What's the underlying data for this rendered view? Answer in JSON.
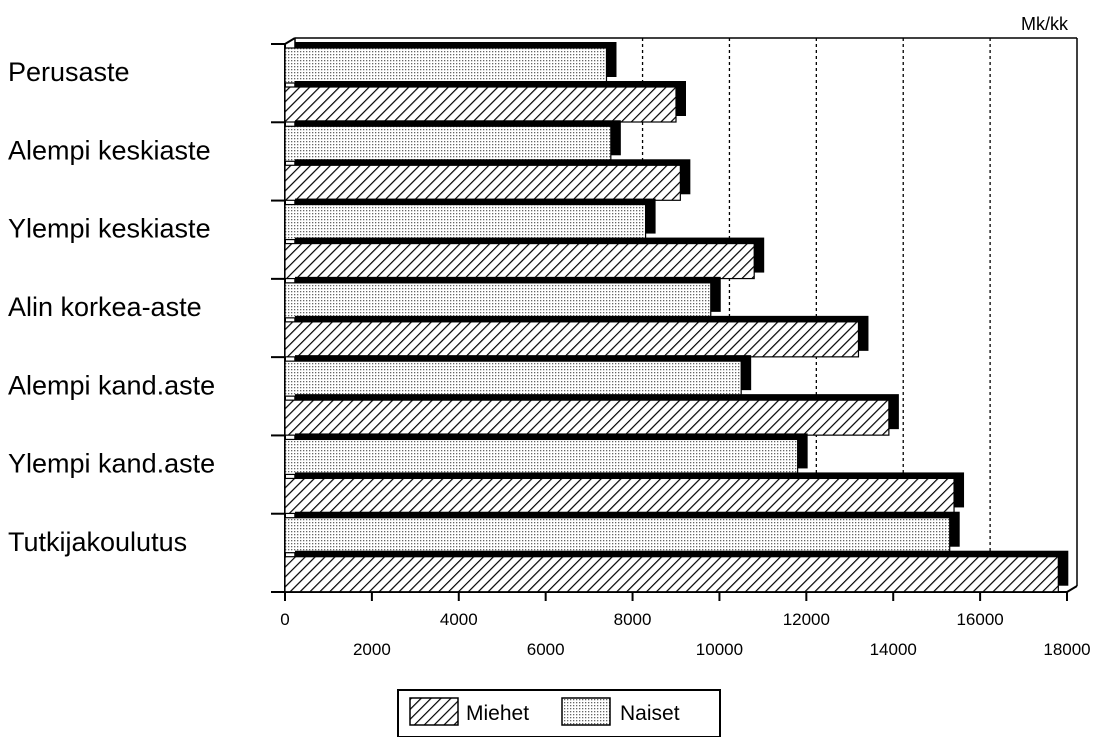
{
  "chart_data": {
    "type": "bar",
    "orientation": "horizontal",
    "unit_label": "Mk/kk",
    "categories": [
      "Perusaste",
      "Alempi keskiaste",
      "Ylempi keskiaste",
      "Alin korkea-aste",
      "Alempi kand.aste",
      "Ylempi kand.aste",
      "Tutkijakoulutus"
    ],
    "series": [
      {
        "name": "Naiset",
        "pattern": "dotted",
        "values": [
          7400,
          7500,
          8300,
          9800,
          10500,
          11800,
          15300
        ]
      },
      {
        "name": "Miehet",
        "pattern": "hatched",
        "values": [
          9000,
          9100,
          10800,
          13200,
          13900,
          15400,
          17800
        ]
      }
    ],
    "xlim": [
      0,
      18000
    ],
    "xticks": [
      0,
      2000,
      4000,
      6000,
      8000,
      10000,
      12000,
      14000,
      16000,
      18000
    ],
    "gridlines": [
      8000,
      10000,
      12000,
      14000,
      16000
    ],
    "legend": {
      "position": "bottom",
      "entries": [
        "Miehet",
        "Naiset"
      ]
    }
  }
}
